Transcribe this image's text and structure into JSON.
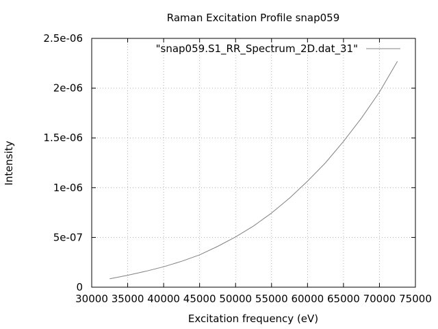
{
  "chart_data": {
    "type": "line",
    "title": "Raman Excitation Profile snap059",
    "xlabel": "Excitation frequency (eV)",
    "ylabel": "Intensity",
    "xlim": [
      30000,
      75000
    ],
    "ylim": [
      0,
      2.5e-06
    ],
    "xticks": [
      30000,
      35000,
      40000,
      45000,
      50000,
      55000,
      60000,
      65000,
      70000,
      75000
    ],
    "xtick_labels": [
      "30000",
      "35000",
      "40000",
      "45000",
      "50000",
      "55000",
      "60000",
      "65000",
      "70000",
      "75000"
    ],
    "yticks": [
      0,
      5e-07,
      1e-06,
      1.5e-06,
      2e-06,
      2.5e-06
    ],
    "ytick_labels": [
      "0",
      "5e-07",
      "1e-06",
      "1.5e-06",
      "2e-06",
      "2.5e-06"
    ],
    "grid": true,
    "legend_position": "top-right",
    "colors": {
      "series": "#808080",
      "grid": "#a0a0a0",
      "axis": "#000000"
    },
    "series": [
      {
        "name": "\"snap059.S1_RR_Spectrum_2D.dat_31\"",
        "x": [
          32500,
          35000,
          37500,
          40000,
          42500,
          45000,
          47500,
          50000,
          52500,
          55000,
          57500,
          60000,
          62500,
          65000,
          67500,
          70000,
          72500
        ],
        "y": [
          8.5e-08,
          1.2e-07,
          1.6e-07,
          2.05e-07,
          2.6e-07,
          3.25e-07,
          4.1e-07,
          5.05e-07,
          6.15e-07,
          7.45e-07,
          8.95e-07,
          1.065e-06,
          1.25e-06,
          1.465e-06,
          1.7e-06,
          1.96e-06,
          2.27e-06
        ]
      }
    ]
  }
}
